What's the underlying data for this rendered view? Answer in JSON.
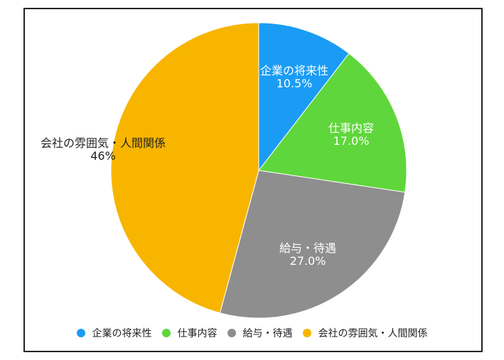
{
  "chart_data": {
    "type": "pie",
    "title": "",
    "start_angle_deg": 0,
    "direction": "clockwise",
    "categories": [
      "企業の将来性",
      "仕事内容",
      "給与・待遇",
      "会社の雰囲気・人間関係"
    ],
    "values": [
      10.5,
      17.0,
      27.0,
      46
    ],
    "value_labels": [
      "10.5%",
      "17.0%",
      "27.0%",
      "46%"
    ],
    "colors": [
      "#1a9cf5",
      "#5fd63b",
      "#8e8e8e",
      "#f7b500"
    ],
    "legend_position": "bottom",
    "slices": [
      {
        "label": "企業の将来性",
        "value_text": "10.5%",
        "color": "#1a9cf5"
      },
      {
        "label": "仕事内容",
        "value_text": "17.0%",
        "color": "#5fd63b"
      },
      {
        "label": "給与・待遇",
        "value_text": "27.0%",
        "color": "#8e8e8e"
      },
      {
        "label": "会社の雰囲気・人間関係",
        "value_text": "46%",
        "color": "#f7b500"
      }
    ]
  },
  "legend": {
    "items": [
      {
        "label": "企業の将来性",
        "color": "#1a9cf5"
      },
      {
        "label": "仕事内容",
        "color": "#5fd63b"
      },
      {
        "label": "給与・待遇",
        "color": "#8e8e8e"
      },
      {
        "label": "会社の雰囲気・人間関係",
        "color": "#f7b500"
      }
    ]
  }
}
